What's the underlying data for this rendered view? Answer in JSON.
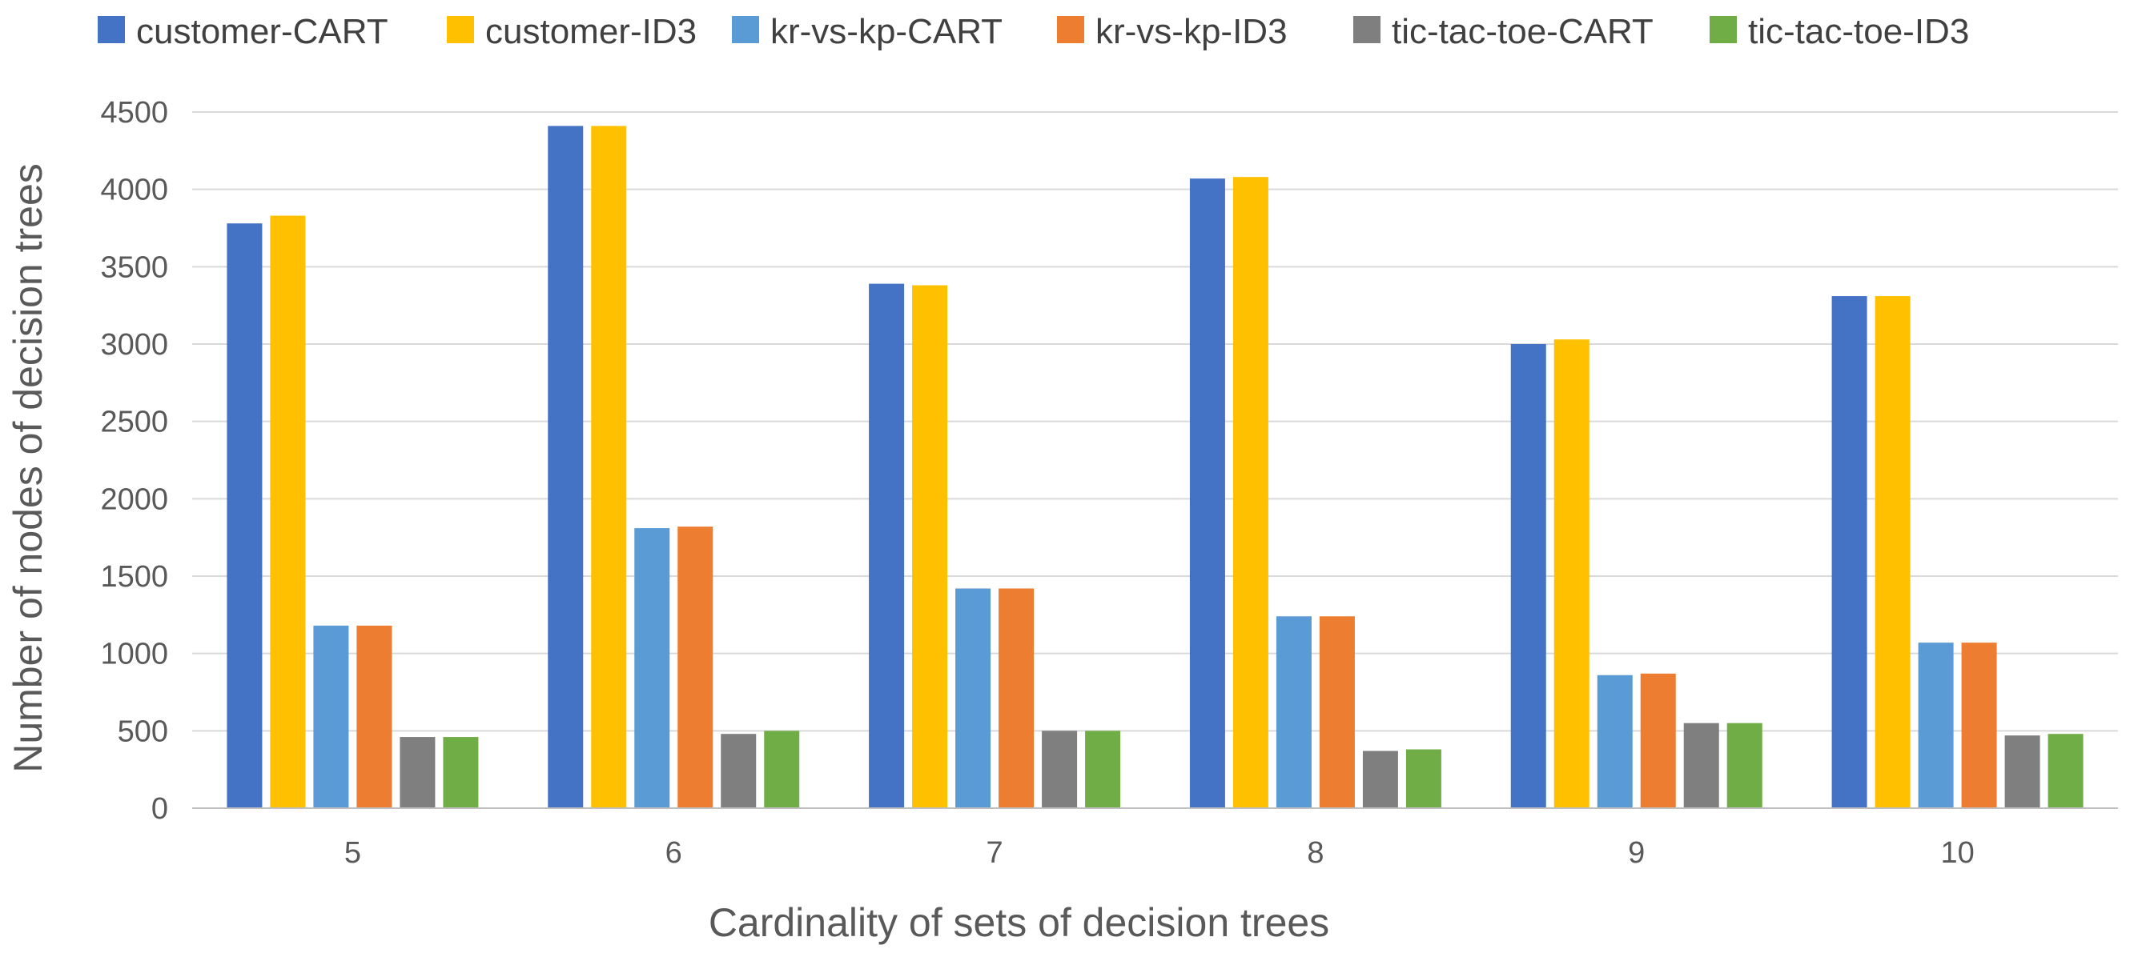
{
  "chart_data": {
    "type": "bar",
    "title": "",
    "xlabel": "Cardinality of sets of decision trees",
    "ylabel": "Number of nodes of decision trees",
    "categories": [
      "5",
      "6",
      "7",
      "8",
      "9",
      "10"
    ],
    "ylim": [
      0,
      4500
    ],
    "yticks": [
      0,
      500,
      1000,
      1500,
      2000,
      2500,
      3000,
      3500,
      4000,
      4500
    ],
    "grid": true,
    "legend_position": "top",
    "series": [
      {
        "name": "customer-CART",
        "color": "#4472C4",
        "values": [
          3780,
          4410,
          3390,
          4070,
          3000,
          3310
        ]
      },
      {
        "name": "customer-ID3",
        "color": "#FFC000",
        "values": [
          3830,
          4410,
          3380,
          4080,
          3030,
          3310
        ]
      },
      {
        "name": "kr-vs-kp-CART",
        "color": "#5B9BD5",
        "values": [
          1180,
          1810,
          1420,
          1240,
          860,
          1070
        ]
      },
      {
        "name": "kr-vs-kp-ID3",
        "color": "#ED7D31",
        "values": [
          1180,
          1820,
          1420,
          1240,
          870,
          1070
        ]
      },
      {
        "name": "tic-tac-toe-CART",
        "color": "#7F7F7F",
        "values": [
          460,
          480,
          500,
          370,
          550,
          470
        ]
      },
      {
        "name": "tic-tac-toe-ID3",
        "color": "#70AD47",
        "values": [
          460,
          500,
          500,
          380,
          550,
          480
        ]
      }
    ]
  }
}
